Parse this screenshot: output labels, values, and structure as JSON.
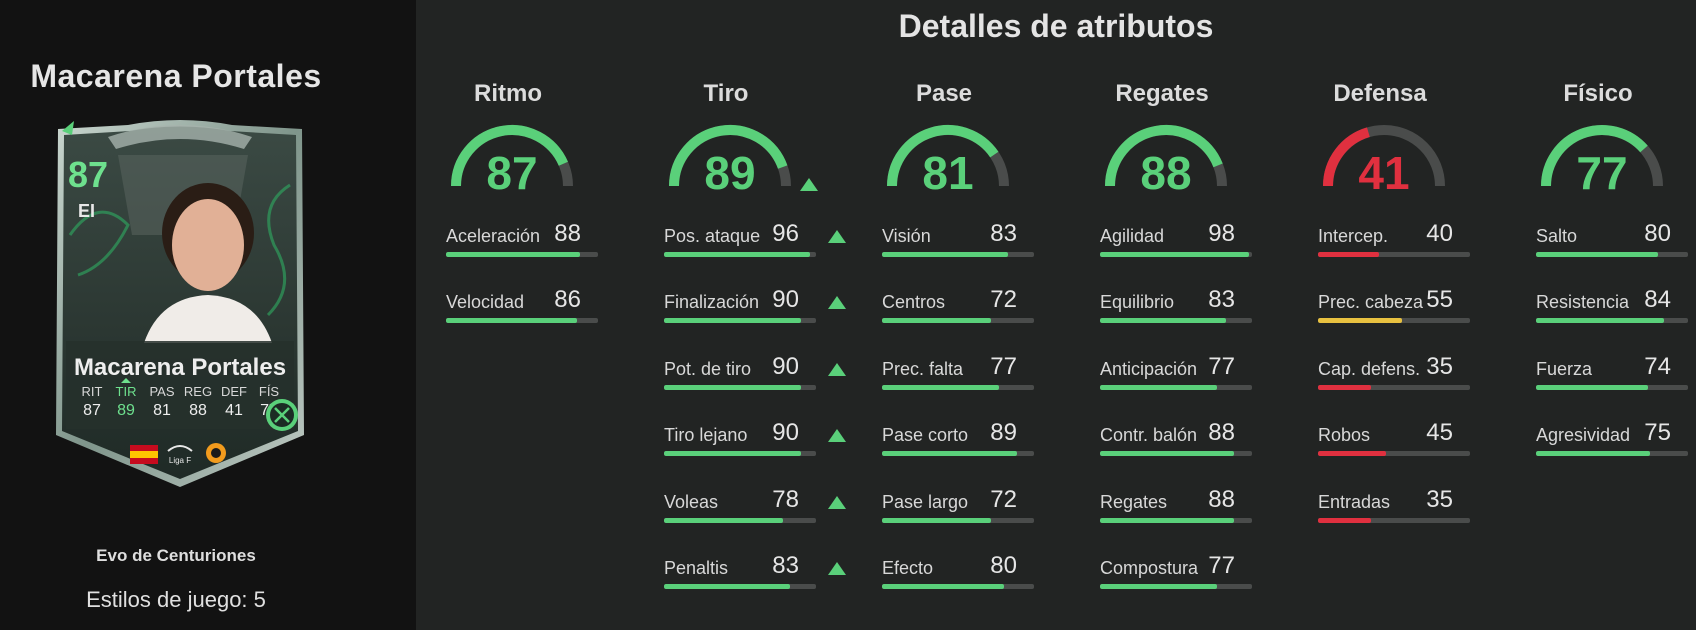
{
  "player": {
    "name": "Macarena Portales",
    "evo_name": "Evo de Centuriones",
    "playstyles": "Estilos de juego: 5"
  },
  "card": {
    "rating": "87",
    "position": "EI",
    "name": "Macarena Portales",
    "stat_labels": [
      "RIT",
      "TIR",
      "PAS",
      "REG",
      "DEF",
      "FÍS"
    ],
    "stat_values": [
      "87",
      "89",
      "81",
      "88",
      "41",
      "77"
    ],
    "league_label": "Liga F",
    "badge_icons": [
      "spain-flag-icon",
      "liga-f-logo-icon",
      "valencia-crest-icon",
      "evolution-icon"
    ]
  },
  "colors": {
    "green": "#5ad07a",
    "red": "#e0303f",
    "yellow": "#e8c140",
    "track": "#4a4c4b"
  },
  "section_title": "Detalles de atributos",
  "categories": [
    {
      "title": "Ritmo",
      "value": "87",
      "color": "green",
      "upgraded": false,
      "stats": [
        {
          "label": "Aceleración",
          "value": "88",
          "up": false
        },
        {
          "label": "Velocidad",
          "value": "86",
          "up": false
        }
      ]
    },
    {
      "title": "Tiro",
      "value": "89",
      "color": "green",
      "upgraded": true,
      "stats": [
        {
          "label": "Pos. ataque",
          "value": "96",
          "up": true
        },
        {
          "label": "Finalización",
          "value": "90",
          "up": true
        },
        {
          "label": "Pot. de tiro",
          "value": "90",
          "up": true
        },
        {
          "label": "Tiro lejano",
          "value": "90",
          "up": true
        },
        {
          "label": "Voleas",
          "value": "78",
          "up": true
        },
        {
          "label": "Penaltis",
          "value": "83",
          "up": true
        }
      ]
    },
    {
      "title": "Pase",
      "value": "81",
      "color": "green",
      "upgraded": false,
      "stats": [
        {
          "label": "Visión",
          "value": "83",
          "up": false
        },
        {
          "label": "Centros",
          "value": "72",
          "up": false
        },
        {
          "label": "Prec. falta",
          "value": "77",
          "up": false
        },
        {
          "label": "Pase corto",
          "value": "89",
          "up": false
        },
        {
          "label": "Pase largo",
          "value": "72",
          "up": false
        },
        {
          "label": "Efecto",
          "value": "80",
          "up": false
        }
      ]
    },
    {
      "title": "Regates",
      "value": "88",
      "color": "green",
      "upgraded": false,
      "stats": [
        {
          "label": "Agilidad",
          "value": "98",
          "up": false
        },
        {
          "label": "Equilibrio",
          "value": "83",
          "up": false
        },
        {
          "label": "Anticipación",
          "value": "77",
          "up": false
        },
        {
          "label": "Contr. balón",
          "value": "88",
          "up": false
        },
        {
          "label": "Regates",
          "value": "88",
          "up": false
        },
        {
          "label": "Compostura",
          "value": "77",
          "up": false
        }
      ]
    },
    {
      "title": "Defensa",
      "value": "41",
      "color": "red",
      "upgraded": false,
      "stats": [
        {
          "label": "Intercep.",
          "value": "40",
          "up": false
        },
        {
          "label": "Prec. cabeza",
          "value": "55",
          "up": false
        },
        {
          "label": "Cap. defens.",
          "value": "35",
          "up": false
        },
        {
          "label": "Robos",
          "value": "45",
          "up": false
        },
        {
          "label": "Entradas",
          "value": "35",
          "up": false
        }
      ]
    },
    {
      "title": "Físico",
      "value": "77",
      "color": "green",
      "upgraded": false,
      "stats": [
        {
          "label": "Salto",
          "value": "80",
          "up": false
        },
        {
          "label": "Resistencia",
          "value": "84",
          "up": false
        },
        {
          "label": "Fuerza",
          "value": "74",
          "up": false
        },
        {
          "label": "Agresividad",
          "value": "75",
          "up": false
        }
      ]
    }
  ]
}
